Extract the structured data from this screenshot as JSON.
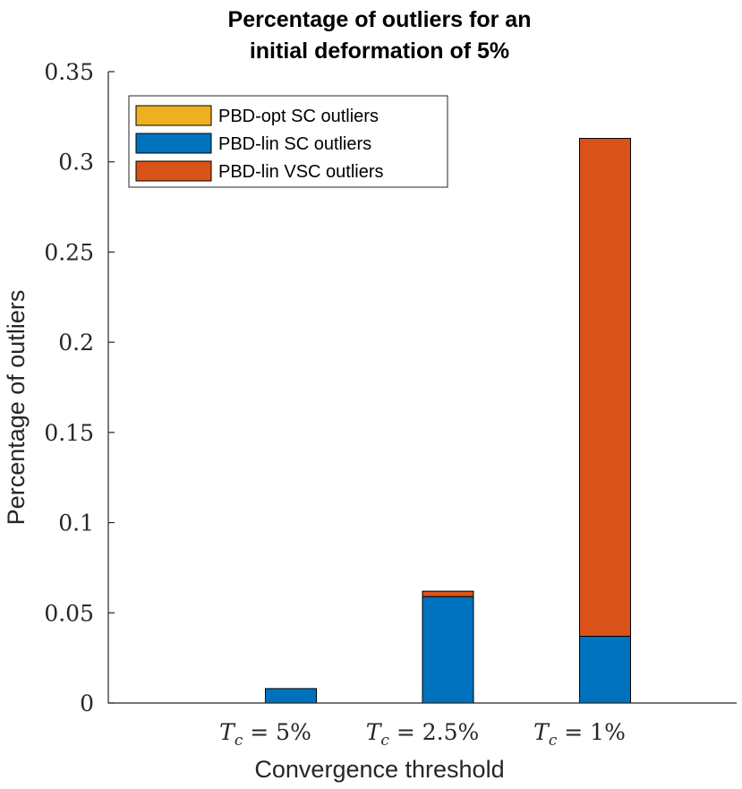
{
  "chart_data": {
    "type": "bar",
    "stacked": true,
    "title": [
      "Percentage of outliers for an",
      "initial deformation of 5%"
    ],
    "xlabel": "Convergence threshold",
    "ylabel": "Percentage of outliers",
    "ylim": [
      0,
      0.35
    ],
    "yticks": [
      0,
      0.05,
      0.1,
      0.15,
      0.2,
      0.25,
      0.3,
      0.35
    ],
    "ytick_labels": [
      "0",
      "0.05",
      "0.1",
      "0.15",
      "0.2",
      "0.25",
      "0.3",
      "0.35"
    ],
    "categories": [
      "T_c = 5%",
      "T_c = 2.5%",
      "T_c = 1%"
    ],
    "groups": [
      {
        "bars": [
          {
            "series": [
              "PBD-opt SC outliers"
            ],
            "values": [
              0
            ]
          },
          {
            "series": [
              "PBD-lin SC outliers",
              "PBD-lin VSC outliers"
            ],
            "values": [
              0.008,
              0
            ]
          }
        ]
      },
      {
        "bars": [
          {
            "series": [
              "PBD-opt SC outliers"
            ],
            "values": [
              0
            ]
          },
          {
            "series": [
              "PBD-lin SC outliers",
              "PBD-lin VSC outliers"
            ],
            "values": [
              0.059,
              0.003
            ]
          }
        ]
      },
      {
        "bars": [
          {
            "series": [
              "PBD-opt SC outliers"
            ],
            "values": [
              0
            ]
          },
          {
            "series": [
              "PBD-lin SC outliers",
              "PBD-lin VSC outliers"
            ],
            "values": [
              0.037,
              0.276
            ]
          }
        ]
      }
    ],
    "legend": {
      "placement": "top-left",
      "entries": [
        {
          "name": "PBD-opt SC outliers",
          "color": "#EDB120"
        },
        {
          "name": "PBD-lin SC outliers",
          "color": "#0072BD"
        },
        {
          "name": "PBD-lin VSC outliers",
          "color": "#D95319"
        }
      ]
    },
    "grid": false
  }
}
